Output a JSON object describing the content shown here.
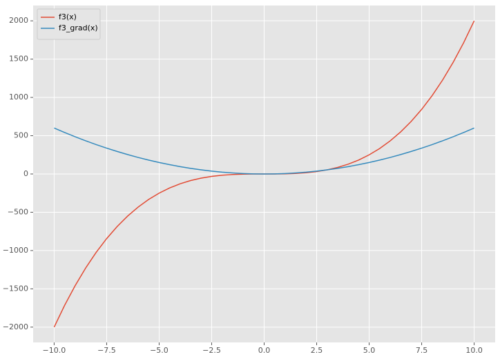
{
  "chart_data": {
    "type": "line",
    "x": [
      -10,
      -9.5,
      -9,
      -8.5,
      -8,
      -7.5,
      -7,
      -6.5,
      -6,
      -5.5,
      -5,
      -4.5,
      -4,
      -3.5,
      -3,
      -2.5,
      -2,
      -1.5,
      -1,
      -0.5,
      0,
      0.5,
      1,
      1.5,
      2,
      2.5,
      3,
      3.5,
      4,
      4.5,
      5,
      5.5,
      6,
      6.5,
      7,
      7.5,
      8,
      8.5,
      9,
      9.5,
      10
    ],
    "series": [
      {
        "name": "f3(x)",
        "color": "#E24A33",
        "values": [
          -2000,
          -1714.75,
          -1458,
          -1228.25,
          -1024,
          -843.75,
          -686,
          -549.25,
          -432,
          -332.75,
          -250,
          -182.25,
          -128,
          -85.75,
          -54,
          -31.25,
          -16,
          -6.75,
          -2,
          -0.25,
          0,
          0.25,
          2,
          6.75,
          16,
          31.25,
          54,
          85.75,
          128,
          182.25,
          250,
          332.75,
          432,
          549.25,
          686,
          843.75,
          1024,
          1228.25,
          1458,
          1714.75,
          2000
        ]
      },
      {
        "name": "f3_grad(x)",
        "color": "#348ABD",
        "values": [
          600,
          541.5,
          486,
          433.5,
          384,
          337.5,
          294,
          253.5,
          216,
          181.5,
          150,
          121.5,
          96,
          73.5,
          54,
          37.5,
          24,
          13.5,
          6,
          1.5,
          0,
          1.5,
          6,
          13.5,
          24,
          37.5,
          54,
          73.5,
          96,
          121.5,
          150,
          181.5,
          216,
          253.5,
          294,
          337.5,
          384,
          433.5,
          486,
          541.5,
          600
        ]
      }
    ],
    "xlim": [
      -11,
      11
    ],
    "ylim": [
      -2200,
      2200
    ],
    "xticks": [
      {
        "value": -10,
        "label": "−10.0"
      },
      {
        "value": -7.5,
        "label": "−7.5"
      },
      {
        "value": -5,
        "label": "−5.0"
      },
      {
        "value": -2.5,
        "label": "−2.5"
      },
      {
        "value": 0,
        "label": "0.0"
      },
      {
        "value": 2.5,
        "label": "2.5"
      },
      {
        "value": 5,
        "label": "5.0"
      },
      {
        "value": 7.5,
        "label": "7.5"
      },
      {
        "value": 10,
        "label": "10.0"
      }
    ],
    "yticks": [
      {
        "value": -2000,
        "label": "−2000"
      },
      {
        "value": -1500,
        "label": "−1500"
      },
      {
        "value": -1000,
        "label": "−1000"
      },
      {
        "value": -500,
        "label": "−500"
      },
      0,
      500,
      1000,
      1500,
      2000
    ],
    "grid": true,
    "legend": "upper left"
  }
}
